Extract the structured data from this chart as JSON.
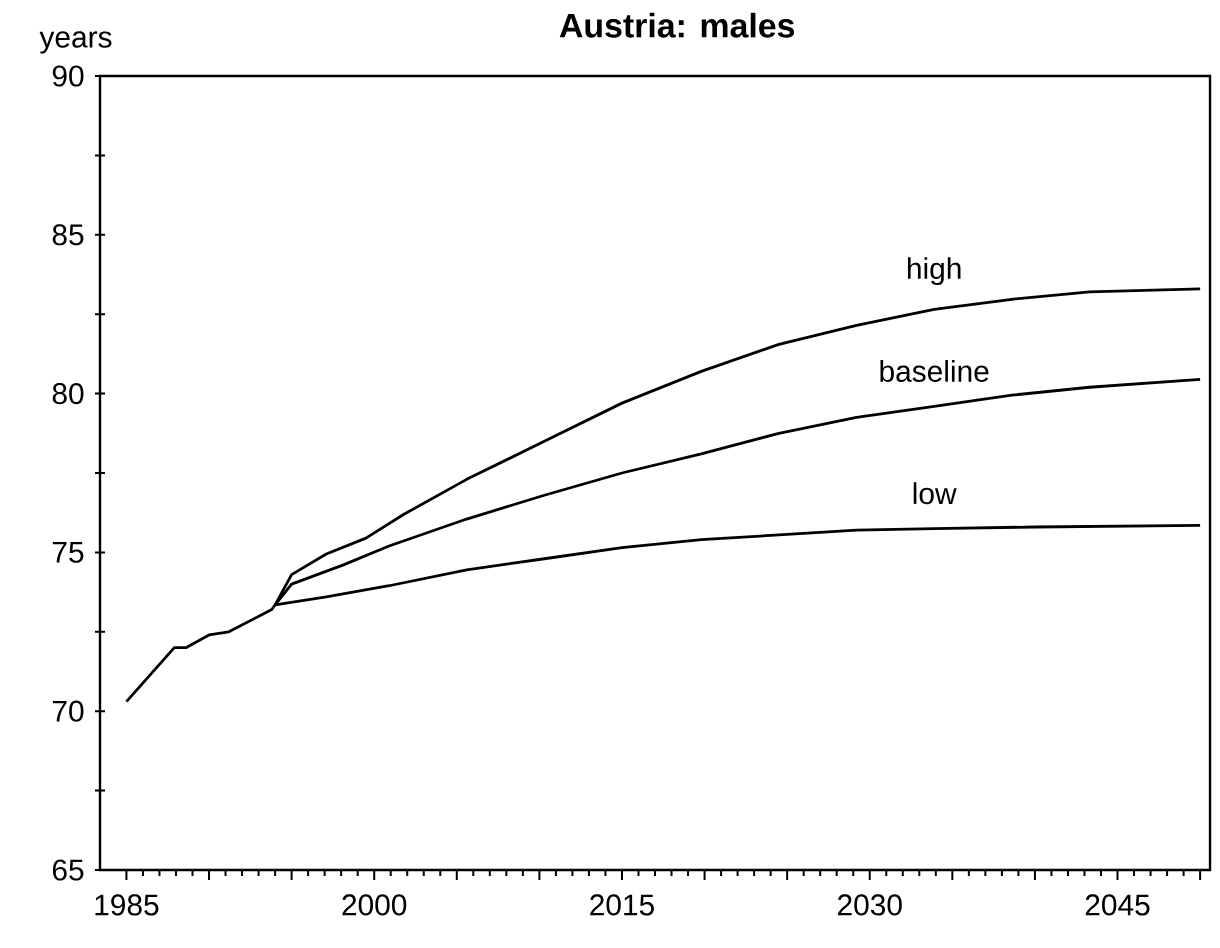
{
  "chart_data": {
    "type": "line",
    "title": "Austria: males",
    "ylabel": "years",
    "xlim": [
      1983.4,
      2050.6
    ],
    "ylim": [
      65,
      90
    ],
    "xticks": [
      1985,
      {
        "value": 1990,
        "label": null
      },
      {
        "value": 1995,
        "label": null
      },
      2000,
      {
        "value": 2005,
        "label": null
      },
      {
        "value": 2010,
        "label": null
      },
      2015,
      {
        "value": 2020,
        "label": null
      },
      {
        "value": 2025,
        "label": null
      },
      2030,
      {
        "value": 2035,
        "label": null
      },
      {
        "value": 2040,
        "label": null
      },
      2045,
      {
        "value": 2050,
        "label": null
      }
    ],
    "yticks": [
      65,
      {
        "value": 67.5,
        "label": null
      },
      70,
      {
        "value": 72.5,
        "label": null
      },
      75,
      {
        "value": 77.5,
        "label": null
      },
      80,
      {
        "value": 82.5,
        "label": null
      },
      85,
      {
        "value": 87.5,
        "label": null
      },
      90
    ],
    "marker": "none",
    "line_style": "solid",
    "grid": false,
    "legend": false,
    "series": [
      {
        "name": "high",
        "color": "#000000",
        "x": [
          1994,
          1995,
          1997.1,
          1999.5,
          2001.8,
          2005.6,
          2010.3,
          2015,
          2019.8,
          2024.5,
          2029.2,
          2033.9,
          2038.6,
          2043.3,
          2050
        ],
        "values": [
          73.35,
          74.3,
          74.95,
          75.45,
          76.2,
          77.3,
          78.5,
          79.7,
          80.7,
          81.55,
          82.15,
          82.65,
          82.97,
          83.2,
          83.3
        ]
      },
      {
        "name": "baseline",
        "color": "#000000",
        "x": [
          1985,
          1987.9,
          1988.6,
          1990,
          1991.2,
          1993.8,
          1994,
          1995,
          1998.1,
          2000.9,
          2005.6,
          2010.3,
          2015,
          2019.8,
          2024.5,
          2029.2,
          2033.9,
          2038.6,
          2043.3,
          2050
        ],
        "values": [
          70.3,
          72.0,
          72.0,
          72.4,
          72.5,
          73.2,
          73.35,
          74.0,
          74.6,
          75.2,
          76.05,
          76.8,
          77.5,
          78.1,
          78.75,
          79.25,
          79.6,
          79.95,
          80.2,
          80.45
        ]
      },
      {
        "name": "low",
        "color": "#000000",
        "x": [
          1994,
          1997.1,
          2000.9,
          2005.6,
          2010.3,
          2015,
          2019.8,
          2024.5,
          2029.2,
          2033.9,
          2040,
          2050
        ],
        "values": [
          73.35,
          73.6,
          73.95,
          74.45,
          74.8,
          75.15,
          75.4,
          75.55,
          75.7,
          75.75,
          75.8,
          75.85
        ]
      }
    ]
  }
}
